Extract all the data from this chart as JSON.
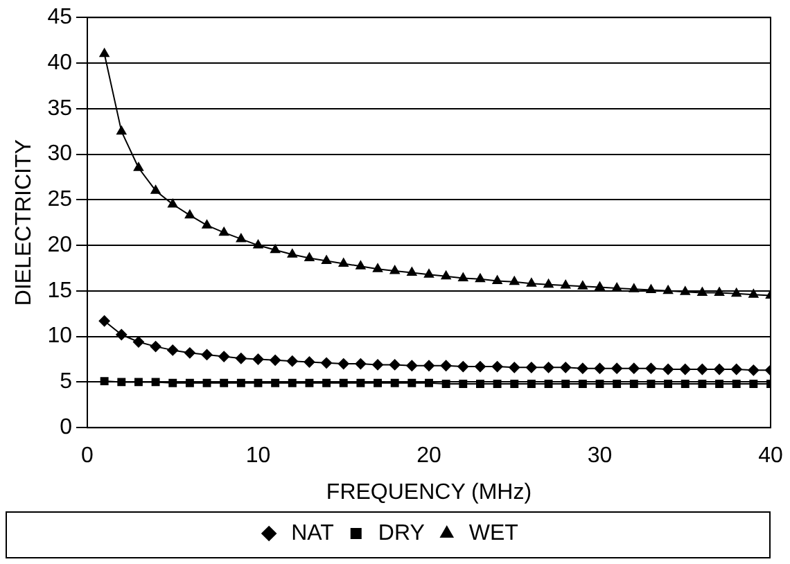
{
  "chart_data": {
    "type": "line",
    "xlabel": "FREQUENCY (MHz)",
    "ylabel": "DIELECTRICITY",
    "x": [
      1,
      2,
      3,
      4,
      5,
      6,
      7,
      8,
      9,
      10,
      11,
      12,
      13,
      14,
      15,
      16,
      17,
      18,
      19,
      20,
      21,
      22,
      23,
      24,
      25,
      26,
      27,
      28,
      29,
      30,
      31,
      32,
      33,
      34,
      35,
      36,
      37,
      38,
      39,
      40
    ],
    "series": [
      {
        "name": "NAT",
        "color": "#000000",
        "marker": "diamond",
        "values": [
          11.7,
          10.2,
          9.4,
          8.9,
          8.5,
          8.2,
          8.0,
          7.8,
          7.6,
          7.5,
          7.4,
          7.3,
          7.2,
          7.1,
          7.0,
          7.0,
          6.9,
          6.9,
          6.8,
          6.8,
          6.8,
          6.7,
          6.7,
          6.7,
          6.6,
          6.6,
          6.6,
          6.6,
          6.5,
          6.5,
          6.5,
          6.5,
          6.5,
          6.4,
          6.4,
          6.4,
          6.4,
          6.4,
          6.3,
          6.3
        ]
      },
      {
        "name": "DRY",
        "color": "#000000",
        "marker": "square",
        "values": [
          5.1,
          5.0,
          5.0,
          5.0,
          4.9,
          4.9,
          4.9,
          4.9,
          4.9,
          4.9,
          4.9,
          4.9,
          4.9,
          4.9,
          4.9,
          4.9,
          4.9,
          4.9,
          4.9,
          4.9,
          4.8,
          4.8,
          4.8,
          4.8,
          4.8,
          4.8,
          4.8,
          4.8,
          4.8,
          4.8,
          4.8,
          4.8,
          4.8,
          4.8,
          4.8,
          4.8,
          4.8,
          4.8,
          4.8,
          4.8
        ]
      },
      {
        "name": "WET",
        "color": "#000000",
        "marker": "triangle",
        "values": [
          41.0,
          32.5,
          28.5,
          26.0,
          24.5,
          23.3,
          22.2,
          21.4,
          20.7,
          20.0,
          19.5,
          19.0,
          18.6,
          18.3,
          18.0,
          17.7,
          17.4,
          17.2,
          17.0,
          16.8,
          16.6,
          16.4,
          16.3,
          16.1,
          16.0,
          15.8,
          15.7,
          15.6,
          15.5,
          15.4,
          15.3,
          15.2,
          15.1,
          15.0,
          14.9,
          14.8,
          14.8,
          14.7,
          14.6,
          14.5
        ]
      }
    ],
    "xlim": [
      0,
      40
    ],
    "xticks": [
      0,
      10,
      20,
      30,
      40
    ],
    "ylim": [
      0,
      45
    ],
    "yticks": [
      0,
      5,
      10,
      15,
      20,
      25,
      30,
      35,
      40,
      45
    ],
    "grid": "y",
    "legend": "bottom",
    "line_style": "solid"
  }
}
